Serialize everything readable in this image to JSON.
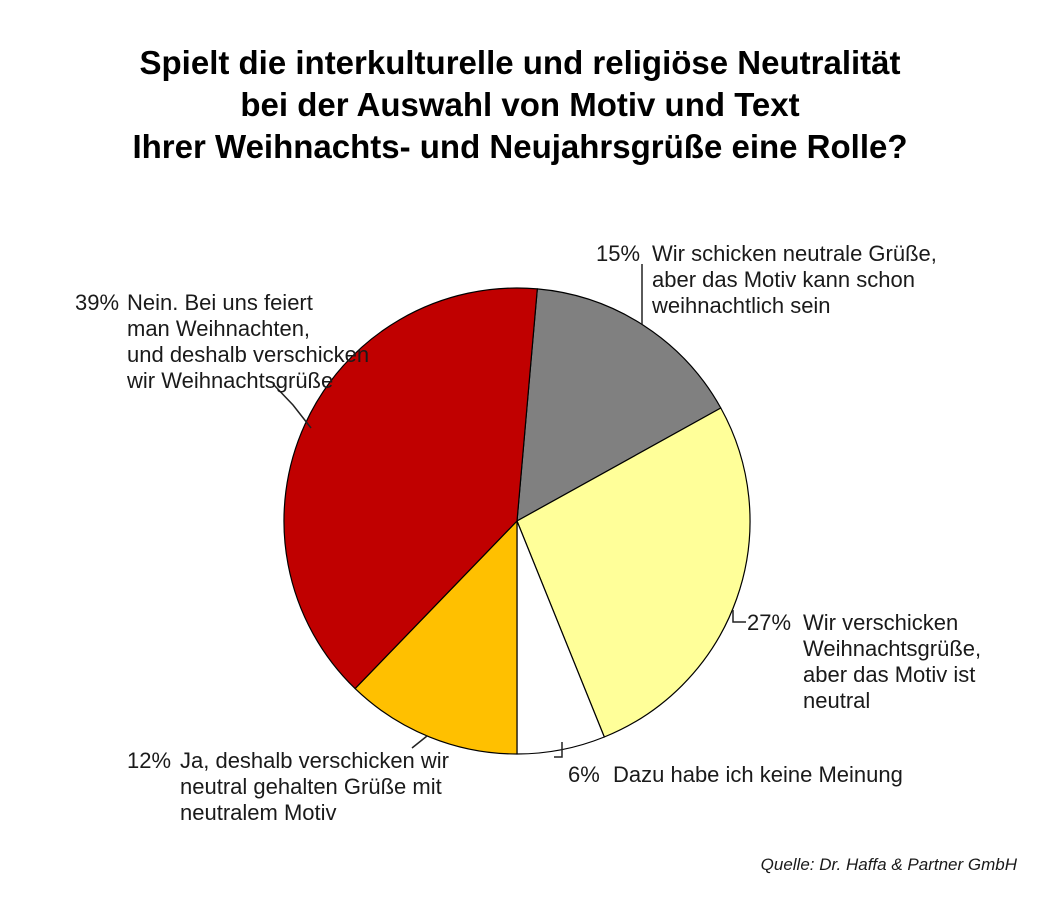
{
  "title": {
    "line1": "Spielt die interkulturelle und religiöse Neutralität",
    "line2": "bei der Auswahl von Motiv und Text",
    "line3": "Ihrer Weihnachts- und Neujahrsgrüße eine Rolle?"
  },
  "source": "Quelle: Dr. Haffa & Partner GmbH",
  "chart_data": {
    "type": "pie",
    "title": "Spielt die interkulturelle und religiöse Neutralität bei der Auswahl von Motiv und Text Ihrer Weihnachts- und Neujahrsgrüße eine Rolle?",
    "legend_position": "callouts",
    "start_angle_deg": 5,
    "slices": [
      {
        "label": "Wir schicken neutrale Grüße, aber das Motiv kann schon weihnachtlich sein",
        "value": 15,
        "arc_deg": 56,
        "color": "#808080"
      },
      {
        "label": "Wir verschicken Weihnachtsgrüße, aber das Motiv ist neutral",
        "value": 27,
        "arc_deg": 97,
        "color": "#FFFF99"
      },
      {
        "label": "Dazu habe ich keine Meinung",
        "value": 6,
        "arc_deg": 22,
        "color": "#FFFFFF"
      },
      {
        "label": "Ja, deshalb verschicken wir neutral gehalten Grüße mit neutralem Motiv",
        "value": 12,
        "arc_deg": 44,
        "color": "#FFC000"
      },
      {
        "label": "Nein. Bei uns feiert man Weihnachten, und deshalb verschicken wir Weihnachtsgrüße",
        "value": 39,
        "arc_deg": 141,
        "color": "#C00000"
      }
    ],
    "outline_color": "#000000",
    "source": "Quelle: Dr. Haffa & Partner GmbH"
  },
  "callouts": {
    "c39": {
      "pct": "39%",
      "lines": [
        "Nein. Bei uns feiert",
        "man Weihnachten,",
        "und deshalb verschicken",
        "wir Weihnachtsgrüße"
      ]
    },
    "c15": {
      "pct": "15%",
      "lines": [
        "Wir schicken neutrale Grüße,",
        "aber das Motiv kann schon",
        "weihnachtlich sein"
      ]
    },
    "c27": {
      "pct": "27%",
      "lines": [
        "Wir verschicken",
        "Weihnachtsgrüße,",
        "aber das Motiv ist",
        "neutral"
      ]
    },
    "c6": {
      "pct": "6%",
      "lines": [
        "Dazu habe ich keine Meinung"
      ]
    },
    "c12": {
      "pct": "12%",
      "lines": [
        "Ja, deshalb verschicken wir",
        "neutral gehalten Grüße mit",
        "neutralem Motiv"
      ]
    }
  }
}
